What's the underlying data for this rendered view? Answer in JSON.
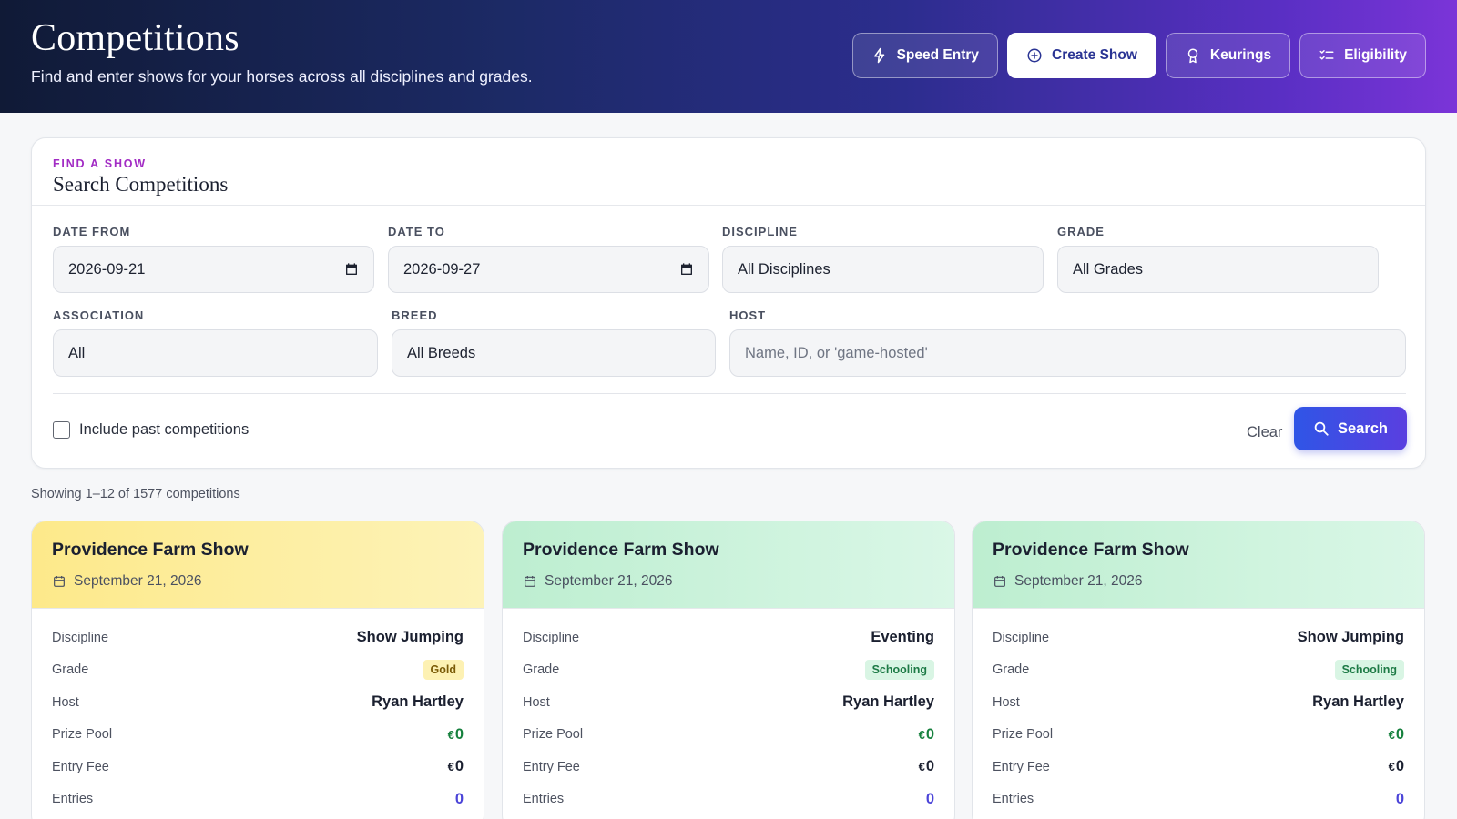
{
  "header": {
    "title": "Competitions",
    "subtitle": "Find and enter shows for your horses across all disciplines and grades.",
    "actions": [
      {
        "label": "Speed Entry",
        "icon": "lightning-icon"
      },
      {
        "label": "Create Show",
        "icon": "plus-circle-icon"
      },
      {
        "label": "Keurings",
        "icon": "award-icon"
      },
      {
        "label": "Eligibility",
        "icon": "checklist-icon"
      }
    ]
  },
  "search": {
    "eyebrow": "FIND A SHOW",
    "title": "Search Competitions",
    "date_from": {
      "label": "DATE FROM",
      "value": "2026-09-21"
    },
    "date_to": {
      "label": "DATE TO",
      "value": "2026-09-27"
    },
    "discipline": {
      "label": "DISCIPLINE",
      "value": "All Disciplines"
    },
    "grade": {
      "label": "GRADE",
      "value": "All Grades"
    },
    "association": {
      "label": "ASSOCIATION",
      "value": "All"
    },
    "breed": {
      "label": "BREED",
      "value": "All Breeds"
    },
    "host": {
      "label": "HOST",
      "placeholder": "Name, ID, or 'game-hosted'"
    },
    "include_past": {
      "label": "Include past competitions",
      "checked": false
    },
    "clear_label": "Clear",
    "search_label": "Search"
  },
  "results": {
    "showing_text": "Showing 1–12 of 1577 competitions"
  },
  "row_labels": {
    "discipline": "Discipline",
    "grade": "Grade",
    "host": "Host",
    "prize_pool": "Prize Pool",
    "entry_fee": "Entry Fee",
    "entries": "Entries"
  },
  "currency_symbol": "€",
  "competitions": [
    {
      "name": "Providence Farm Show",
      "date": "September 21, 2026",
      "discipline": "Show Jumping",
      "grade": "Gold",
      "host": "Ryan Hartley",
      "prize_pool": "0",
      "entry_fee": "0",
      "entries": "0",
      "theme": "gold"
    },
    {
      "name": "Providence Farm Show",
      "date": "September 21, 2026",
      "discipline": "Eventing",
      "grade": "Schooling",
      "host": "Ryan Hartley",
      "prize_pool": "0",
      "entry_fee": "0",
      "entries": "0",
      "theme": "green"
    },
    {
      "name": "Providence Farm Show",
      "date": "September 21, 2026",
      "discipline": "Show Jumping",
      "grade": "Schooling",
      "host": "Ryan Hartley",
      "prize_pool": "0",
      "entry_fee": "0",
      "entries": "0",
      "theme": "green"
    }
  ],
  "colors": {
    "accent": "#a22cc4",
    "primary_button": "#2f55e6",
    "money": "#15803d",
    "entries": "#4b44d8"
  }
}
